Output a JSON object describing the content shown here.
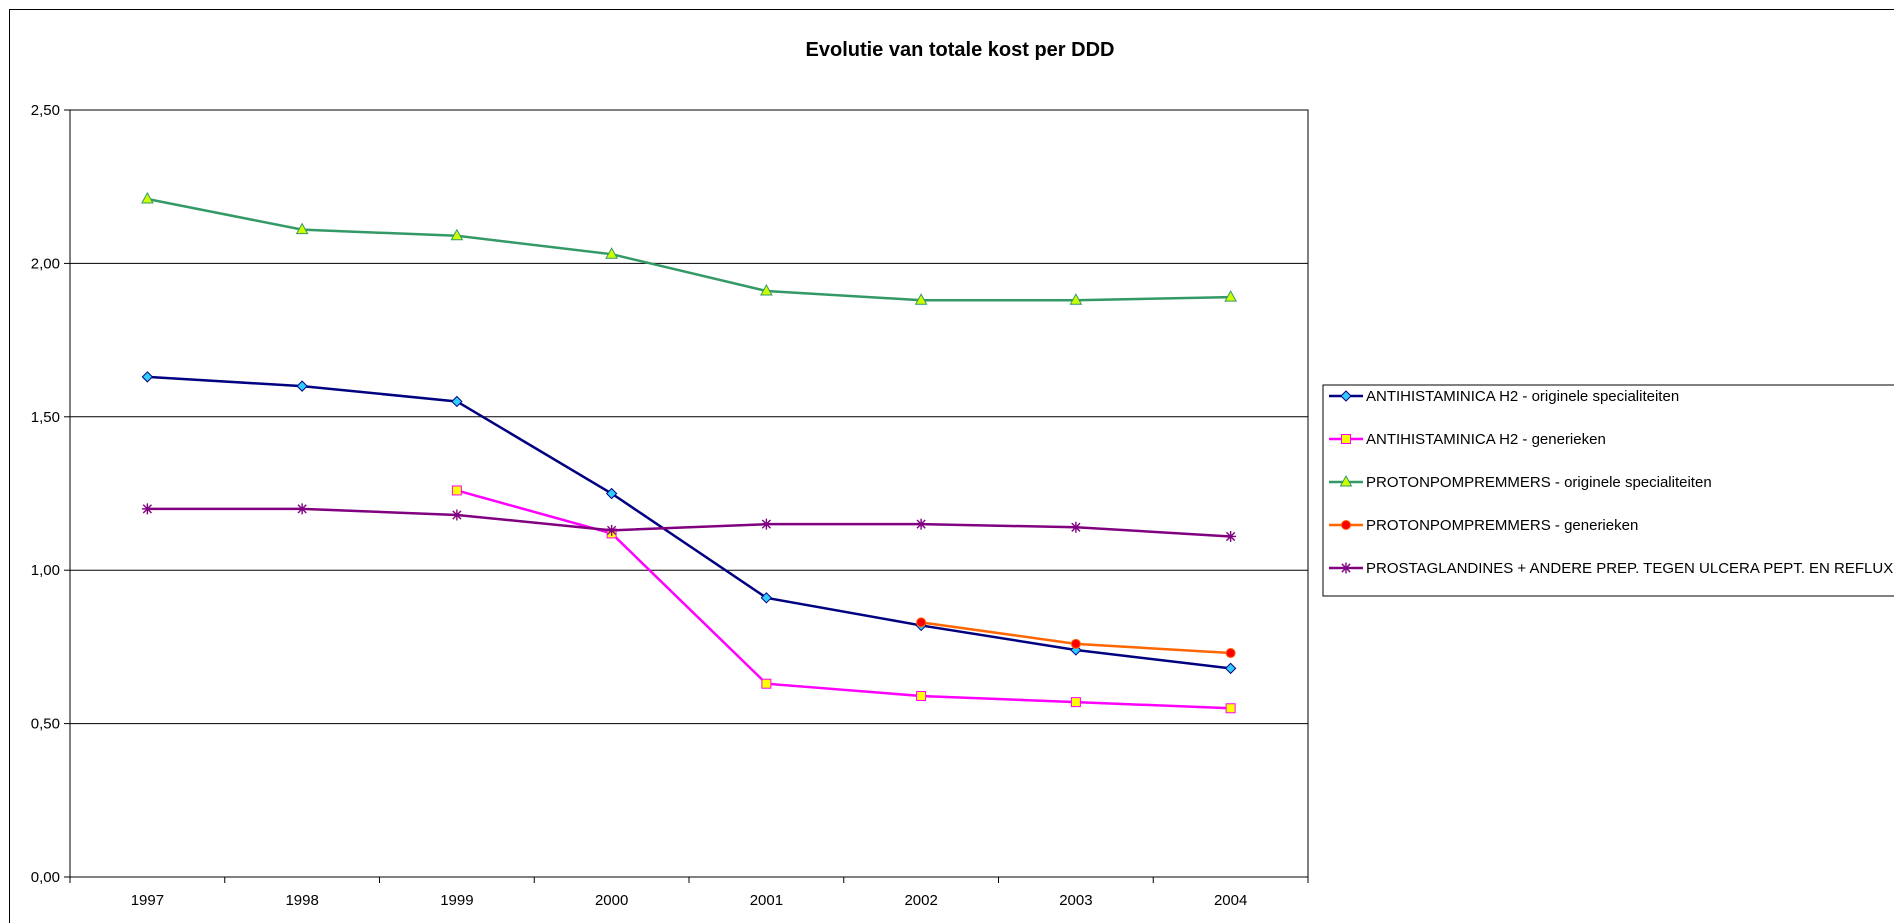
{
  "chart_data": {
    "type": "line",
    "title": "Evolutie van totale kost per DDD",
    "xlabel": "",
    "ylabel": "",
    "categories": [
      "1997",
      "1998",
      "1999",
      "2000",
      "2001",
      "2002",
      "2003",
      "2004"
    ],
    "ylim": [
      0,
      2.5
    ],
    "yticks": [
      "0,00",
      "0,50",
      "1,00",
      "1,50",
      "2,00",
      "2,50"
    ],
    "grid": true,
    "legend_position": "right",
    "series": [
      {
        "name": "ANTIHISTAMINICA H2 - originele specialiteiten",
        "color": "#000080",
        "marker": "diamond",
        "marker_fill": "#33CCFF",
        "values": [
          1.63,
          1.6,
          1.55,
          1.25,
          0.91,
          0.82,
          0.74,
          0.68
        ]
      },
      {
        "name": "ANTIHISTAMINICA H2 - generieken",
        "color": "#FF00FF",
        "marker": "square",
        "marker_fill": "#FFFF00",
        "values": [
          null,
          null,
          1.26,
          1.12,
          0.63,
          0.59,
          0.57,
          0.55
        ]
      },
      {
        "name": "PROTONPOMPREMMERS - originele specialiteiten",
        "color": "#339966",
        "marker": "triangle",
        "marker_fill": "#CCFF00",
        "values": [
          2.21,
          2.11,
          2.09,
          2.03,
          1.91,
          1.88,
          1.88,
          1.89
        ]
      },
      {
        "name": "PROTONPOMPREMMERS - generieken",
        "color": "#FF6600",
        "marker": "circle",
        "marker_fill": "#FF0000",
        "values": [
          null,
          null,
          null,
          null,
          null,
          0.83,
          0.76,
          0.73
        ]
      },
      {
        "name": "PROSTAGLANDINES + ANDERE PREP. TEGEN ULCERA PEPT. EN REFLUX",
        "color": "#800080",
        "marker": "star",
        "marker_fill": "#800080",
        "values": [
          1.2,
          1.2,
          1.18,
          1.13,
          1.15,
          1.15,
          1.14,
          1.11
        ]
      }
    ]
  }
}
